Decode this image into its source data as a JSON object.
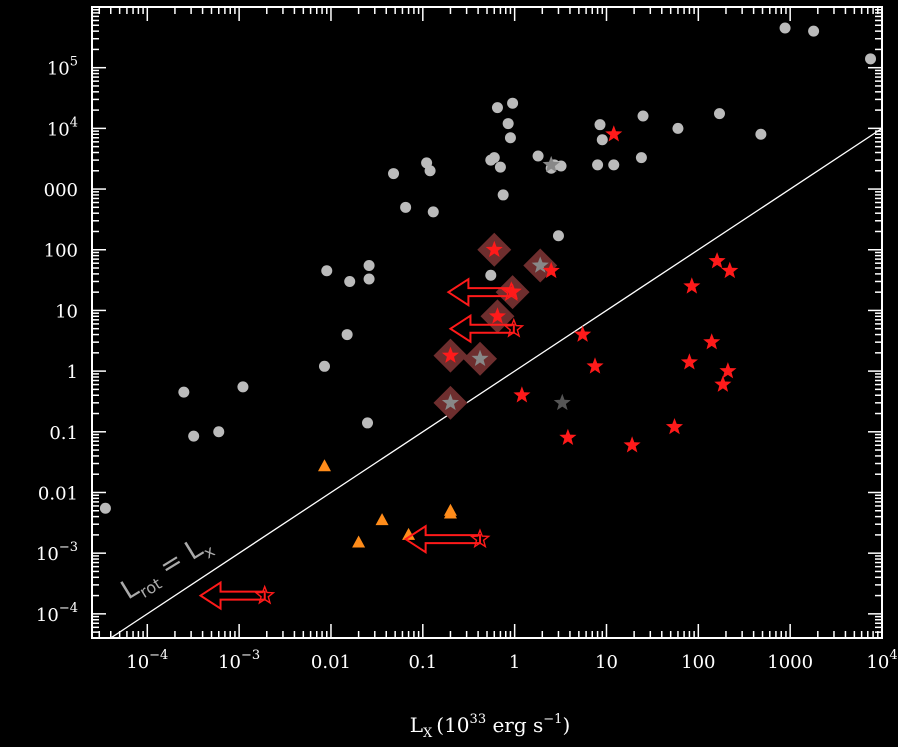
{
  "chart_data": {
    "type": "scatter",
    "xlabel": "L",
    "xlabel_sub": "X",
    "xlabel_units": "(10",
    "xlabel_exp": "33",
    "xlabel_units2": " erg s",
    "xlabel_exp2": "−1",
    "xlabel_close": ")",
    "xscale": "log",
    "yscale": "log",
    "xlim": [
      2.5e-05,
      10000
    ],
    "ylim": [
      4e-05,
      1000000
    ],
    "x_ticks": [
      {
        "value": 0.0001,
        "mantissa": "10",
        "exp": "−4"
      },
      {
        "value": 0.001,
        "mantissa": "10",
        "exp": "−3"
      },
      {
        "value": 0.01,
        "label": "0.01"
      },
      {
        "value": 0.1,
        "label": "0.1"
      },
      {
        "value": 1,
        "label": "1"
      },
      {
        "value": 10,
        "label": "10"
      },
      {
        "value": 100,
        "label": "100"
      },
      {
        "value": 1000,
        "label": "1000"
      },
      {
        "value": 10000,
        "mantissa": "10",
        "exp": "4"
      }
    ],
    "y_ticks": [
      {
        "value": 100000,
        "mantissa": "10",
        "exp": "5"
      },
      {
        "value": 10000,
        "mantissa": "10",
        "exp": "4"
      },
      {
        "value": 1000,
        "label": "000"
      },
      {
        "value": 100,
        "label": "100"
      },
      {
        "value": 10,
        "label": "10"
      },
      {
        "value": 1,
        "label": "1"
      },
      {
        "value": 0.1,
        "label": "0.1"
      },
      {
        "value": 0.01,
        "label": "0.01"
      },
      {
        "value": 0.001,
        "mantissa": "10",
        "exp": "−3"
      },
      {
        "value": 0.0001,
        "mantissa": "10",
        "exp": "−4"
      }
    ],
    "line_label": "L",
    "line_label_sub1": "rot",
    "line_label_mid": " = L",
    "line_label_sub2": "x",
    "reference_line": {
      "slope": 1,
      "intercept": 0,
      "color": "#ffffff"
    },
    "colors": {
      "gray_dot": "#bbbbbb",
      "red_star": "#ff1a1a",
      "orange_triangle": "#ff8c1a",
      "diamond": "#6e2e2e",
      "gray_star": "#888888",
      "dark_gray_star": "#555555"
    },
    "series": [
      {
        "marker": "dot",
        "points": [
          [
            3.5e-05,
            0.0055
          ],
          [
            0.00025,
            0.45
          ],
          [
            0.00032,
            0.085
          ],
          [
            0.0006,
            0.1
          ],
          [
            0.0011,
            0.55
          ],
          [
            0.0085,
            1.2
          ],
          [
            0.009,
            45
          ],
          [
            0.015,
            4
          ],
          [
            0.016,
            30
          ],
          [
            0.025,
            0.14
          ],
          [
            0.026,
            33
          ],
          [
            0.026,
            55
          ],
          [
            0.048,
            1800
          ],
          [
            0.065,
            500
          ],
          [
            0.11,
            2700
          ],
          [
            0.12,
            2000
          ],
          [
            0.13,
            420
          ],
          [
            0.55,
            38
          ],
          [
            0.55,
            3000
          ],
          [
            0.6,
            3300
          ],
          [
            0.65,
            22000
          ],
          [
            0.7,
            2300
          ],
          [
            0.75,
            800
          ],
          [
            0.85,
            12000
          ],
          [
            0.9,
            7000
          ],
          [
            0.95,
            26000
          ],
          [
            1.8,
            3500
          ],
          [
            2.5,
            2200
          ],
          [
            2.7,
            2500
          ],
          [
            3.0,
            170
          ],
          [
            3.2,
            2400
          ],
          [
            8.0,
            2500
          ],
          [
            8.5,
            11500
          ],
          [
            9.0,
            6500
          ],
          [
            12,
            2500
          ],
          [
            24,
            3300
          ],
          [
            25,
            16000
          ],
          [
            60,
            10000
          ],
          [
            170,
            17500
          ],
          [
            480,
            8000
          ],
          [
            880,
            450000
          ],
          [
            1800,
            400000
          ],
          [
            7500,
            140000
          ]
        ]
      },
      {
        "marker": "red_star",
        "points": [
          [
            0.2,
            1.8
          ],
          [
            0.6,
            100
          ],
          [
            0.65,
            8
          ],
          [
            0.95,
            20
          ],
          [
            1.2,
            0.4
          ],
          [
            2.5,
            45
          ],
          [
            3.8,
            0.08
          ],
          [
            5.5,
            4
          ],
          [
            7.5,
            1.2
          ],
          [
            12,
            8000
          ],
          [
            19,
            0.06
          ],
          [
            55,
            0.12
          ],
          [
            80,
            1.4
          ],
          [
            85,
            25
          ],
          [
            140,
            3
          ],
          [
            160,
            65
          ],
          [
            185,
            0.6
          ],
          [
            210,
            1.0
          ],
          [
            220,
            45
          ]
        ]
      },
      {
        "marker": "gray_star",
        "points": [
          [
            0.2,
            0.3
          ],
          [
            0.42,
            1.6
          ],
          [
            1.9,
            55
          ],
          [
            2.5,
            2500
          ]
        ]
      },
      {
        "marker": "dark_gray_star",
        "points": [
          [
            3.3,
            0.3
          ]
        ]
      },
      {
        "marker": "diamond",
        "points": [
          [
            0.2,
            0.3
          ],
          [
            0.2,
            1.8
          ],
          [
            0.42,
            1.6
          ],
          [
            0.6,
            100
          ],
          [
            0.65,
            8
          ],
          [
            0.95,
            20
          ],
          [
            1.9,
            55
          ]
        ]
      },
      {
        "marker": "orange_triangle",
        "points": [
          [
            0.0085,
            0.027
          ],
          [
            0.02,
            0.0015
          ],
          [
            0.036,
            0.0035
          ],
          [
            0.07,
            0.002
          ],
          [
            0.2,
            0.0045
          ],
          [
            0.2,
            0.005
          ]
        ]
      },
      {
        "marker": "open_red_star",
        "points": [
          [
            0.0019,
            0.0002
          ],
          [
            0.42,
            0.0017
          ],
          [
            0.92,
            20
          ],
          [
            0.98,
            5
          ]
        ]
      }
    ],
    "upper_limit_arrows": [
      {
        "x_from": 0.0019,
        "x_to": 0.00038,
        "y": 0.0002
      },
      {
        "x_from": 0.42,
        "x_to": 0.065,
        "y": 0.0017
      },
      {
        "x_from": 0.92,
        "x_to": 0.19,
        "y": 20
      },
      {
        "x_from": 0.98,
        "x_to": 0.2,
        "y": 5
      }
    ]
  }
}
